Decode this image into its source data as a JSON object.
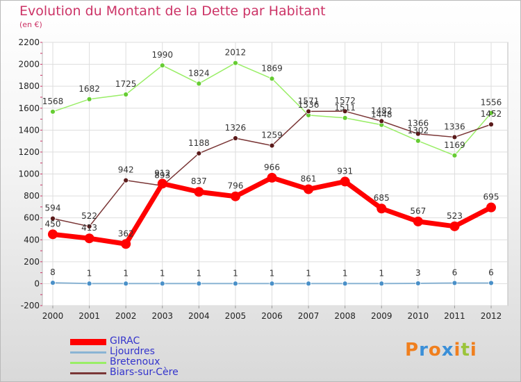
{
  "header": {
    "title": "Evolution du Montant de la Dette par Habitant",
    "subtitle": "(en €)"
  },
  "logo": {
    "text": "Proxiti",
    "letters": [
      "P",
      "r",
      "o",
      "x",
      "i",
      "t",
      "i"
    ],
    "colors": [
      "#f07f1e",
      "#3a8fd8",
      "#f07f1e",
      "#3a8fd8",
      "#f07f1e",
      "#9bc43a",
      "#f07f1e"
    ]
  },
  "chart_data": {
    "type": "line",
    "x": [
      "2000",
      "2001",
      "2002",
      "2003",
      "2004",
      "2005",
      "2006",
      "2007",
      "2008",
      "2009",
      "2010",
      "2011",
      "2012"
    ],
    "ylim": [
      -200,
      2200
    ],
    "yticks": [
      "-200",
      "0",
      "200",
      "400",
      "600",
      "800",
      "1000",
      "1200",
      "1400",
      "1600",
      "1800",
      "2000",
      "2200"
    ],
    "grid": true,
    "legend_position": "bottom-left",
    "series": [
      {
        "name": "GIRAC",
        "values": [
          450,
          413,
          362,
          912,
          837,
          796,
          966,
          861,
          931,
          685,
          567,
          523,
          695
        ],
        "labels": [
          "450",
          "413",
          "362",
          "912",
          "837",
          "796",
          "966",
          "861",
          "931",
          "685",
          "567",
          "523",
          "695"
        ],
        "color": "#ff0000",
        "marker": "#ff0000",
        "width": 7,
        "radius": 7
      },
      {
        "name": "Ljourdres",
        "values": [
          8,
          1,
          1,
          1,
          1,
          1,
          1,
          1,
          1,
          1,
          3,
          6,
          6
        ],
        "labels": [
          "8",
          "1",
          "1",
          "1",
          "1",
          "1",
          "1",
          "1",
          "1",
          "1",
          "3",
          "6",
          "6"
        ],
        "color": "#8ab4d4",
        "marker": "#4a90c8",
        "width": 2,
        "radius": 3.5
      },
      {
        "name": "Bretenoux",
        "values": [
          1568,
          1682,
          1725,
          1990,
          1824,
          2012,
          1869,
          1536,
          1511,
          1448,
          1302,
          1169,
          1556
        ],
        "labels": [
          "1568",
          "1682",
          "1725",
          "1990",
          "1824",
          "2012",
          "1869",
          "1536",
          "1511",
          "1448",
          "1302",
          "1169",
          "1556"
        ],
        "color": "#99ee66",
        "marker": "#66cc33",
        "width": 1.5,
        "radius": 3.5
      },
      {
        "name": "Biars-sur-Cère",
        "values": [
          594,
          522,
          942,
          893,
          1188,
          1326,
          1259,
          1571,
          1572,
          1482,
          1366,
          1336,
          1452
        ],
        "labels": [
          "594",
          "522",
          "942",
          "893",
          "1188",
          "1326",
          "1259",
          "1571",
          "1572",
          "1482",
          "1366",
          "1336",
          "1452"
        ],
        "color": "#7a3636",
        "marker": "#5a1a1a",
        "width": 1.5,
        "radius": 3.5
      }
    ]
  }
}
